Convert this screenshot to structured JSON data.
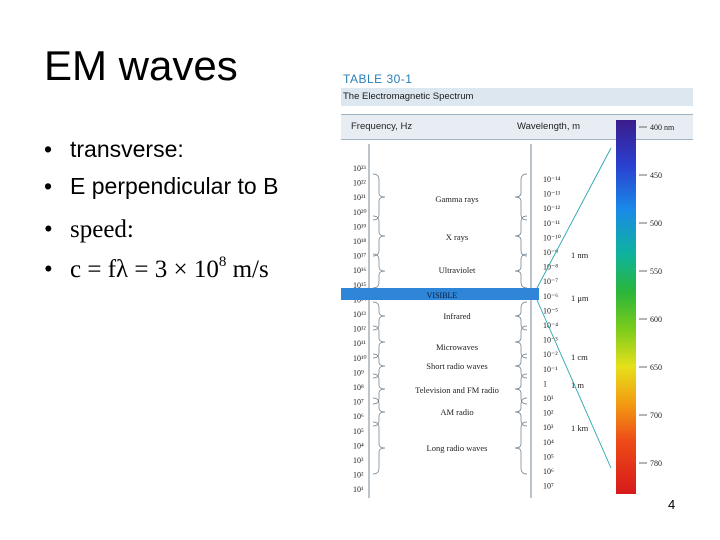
{
  "slide": {
    "title": "EM waves",
    "page_number": "4",
    "bullets": [
      {
        "marker": "•",
        "text": "transverse:"
      },
      {
        "marker": "•",
        "text": "E perpendicular to B"
      },
      {
        "marker": "•",
        "text": "speed:"
      },
      {
        "marker": "•",
        "pre": "c = fλ = 3 × 10",
        "sup": "8",
        "post": " m/s"
      }
    ]
  },
  "table": {
    "number": "TABLE 30-1",
    "caption": "The Electromagnetic Spectrum",
    "frequency_header": "Frequency, Hz",
    "wavelength_header": "Wavelength, m",
    "frequency_labels": [
      "10²³",
      "10²²",
      "10²¹",
      "10²⁰",
      "10¹⁹",
      "10¹⁸",
      "10¹⁷",
      "10¹⁶",
      "10¹⁵",
      "10¹⁴",
      "10¹³",
      "10¹²",
      "10¹¹",
      "10¹⁰",
      "10⁹",
      "10⁸",
      "10⁷",
      "10⁶",
      "10⁵",
      "10⁴",
      "10³",
      "10²",
      "10¹"
    ],
    "wavelength_labels": [
      "10⁻¹⁴",
      "10⁻¹³",
      "10⁻¹²",
      "10⁻¹¹",
      "10⁻¹⁰",
      "10⁻⁹",
      "10⁻⁸",
      "10⁻⁷",
      "10⁻⁶",
      "10⁻⁵",
      "10⁻⁴",
      "10⁻³",
      "10⁻²",
      "10⁻¹",
      "1",
      "10¹",
      "10²",
      "10³",
      "10⁴",
      "10⁵",
      "10⁶",
      "10⁷"
    ],
    "bands": [
      "Gamma rays",
      "X rays",
      "Ultraviolet",
      "VISIBLE",
      "Infrared",
      "Microwaves",
      "Short radio waves",
      "Television and FM radio",
      "AM radio",
      "Long radio waves"
    ],
    "unit_markers": [
      "1 nm",
      "1 μm",
      "1 cm",
      "1 m",
      "1 km"
    ],
    "nm_scale": [
      "400 nm",
      "450",
      "500",
      "550",
      "600",
      "650",
      "700",
      "780"
    ],
    "colors": {
      "accent": "#2a7fb8",
      "visible_band": "#2f86d8",
      "caption_bg": "#dde7ef"
    }
  }
}
